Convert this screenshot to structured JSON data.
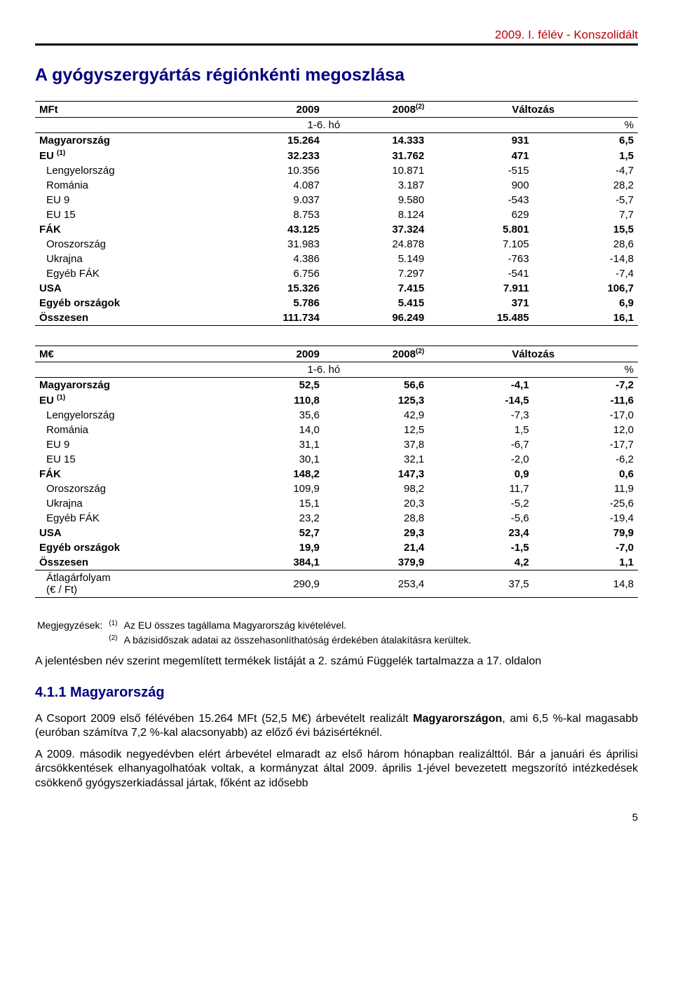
{
  "header_right": "2009. I. félév - Konszolidált",
  "title": "A gyógyszergyártás régiónkénti megoszlása",
  "t1": {
    "hdr": {
      "c0": "MFt",
      "c1": "2009",
      "c2_html": "2008<sup>(2)</sup>",
      "c3": "Változás"
    },
    "sub": {
      "span12": "1-6. hó",
      "c4": "%"
    },
    "rows": [
      {
        "label_html": "Magyarország",
        "bold": true,
        "indent": 0,
        "v": [
          "15.264",
          "14.333",
          "931",
          "6,5"
        ]
      },
      {
        "label_html": "EU <sup>(1)</sup>",
        "bold": true,
        "indent": 0,
        "v": [
          "32.233",
          "31.762",
          "471",
          "1,5"
        ]
      },
      {
        "label_html": "Lengyelország",
        "bold": false,
        "indent": 1,
        "v": [
          "10.356",
          "10.871",
          "-515",
          "-4,7"
        ]
      },
      {
        "label_html": "Románia",
        "bold": false,
        "indent": 1,
        "v": [
          "4.087",
          "3.187",
          "900",
          "28,2"
        ]
      },
      {
        "label_html": "EU 9",
        "bold": false,
        "indent": 1,
        "v": [
          "9.037",
          "9.580",
          "-543",
          "-5,7"
        ]
      },
      {
        "label_html": "EU 15",
        "bold": false,
        "indent": 1,
        "v": [
          "8.753",
          "8.124",
          "629",
          "7,7"
        ]
      },
      {
        "label_html": "FÁK",
        "bold": true,
        "indent": 0,
        "v": [
          "43.125",
          "37.324",
          "5.801",
          "15,5"
        ]
      },
      {
        "label_html": "Oroszország",
        "bold": false,
        "indent": 1,
        "v": [
          "31.983",
          "24.878",
          "7.105",
          "28,6"
        ]
      },
      {
        "label_html": "Ukrajna",
        "bold": false,
        "indent": 1,
        "v": [
          "4.386",
          "5.149",
          "-763",
          "-14,8"
        ]
      },
      {
        "label_html": "Egyéb FÁK",
        "bold": false,
        "indent": 1,
        "v": [
          "6.756",
          "7.297",
          "-541",
          "-7,4"
        ]
      },
      {
        "label_html": "USA",
        "bold": true,
        "indent": 0,
        "v": [
          "15.326",
          "7.415",
          "7.911",
          "106,7"
        ]
      },
      {
        "label_html": "Egyéb országok",
        "bold": true,
        "indent": 0,
        "v": [
          "5.786",
          "5.415",
          "371",
          "6,9"
        ]
      },
      {
        "label_html": "Összesen",
        "bold": true,
        "indent": 0,
        "v": [
          "111.734",
          "96.249",
          "15.485",
          "16,1"
        ]
      }
    ]
  },
  "t2": {
    "hdr": {
      "c0": "M€",
      "c1": "2009",
      "c2_html": "2008<sup>(2)</sup>",
      "c3": "Változás"
    },
    "sub": {
      "span12": "1-6. hó",
      "c4": "%"
    },
    "rows": [
      {
        "label_html": "Magyarország",
        "bold": true,
        "indent": 0,
        "v": [
          "52,5",
          "56,6",
          "-4,1",
          "-7,2"
        ]
      },
      {
        "label_html": "EU <sup>(1)</sup>",
        "bold": true,
        "indent": 0,
        "v": [
          "110,8",
          "125,3",
          "-14,5",
          "-11,6"
        ]
      },
      {
        "label_html": "Lengyelország",
        "bold": false,
        "indent": 1,
        "v": [
          "35,6",
          "42,9",
          "-7,3",
          "-17,0"
        ]
      },
      {
        "label_html": "Románia",
        "bold": false,
        "indent": 1,
        "v": [
          "14,0",
          "12,5",
          "1,5",
          "12,0"
        ]
      },
      {
        "label_html": "EU 9",
        "bold": false,
        "indent": 1,
        "v": [
          "31,1",
          "37,8",
          "-6,7",
          "-17,7"
        ]
      },
      {
        "label_html": "EU 15",
        "bold": false,
        "indent": 1,
        "v": [
          "30,1",
          "32,1",
          "-2,0",
          "-6,2"
        ]
      },
      {
        "label_html": "FÁK",
        "bold": true,
        "indent": 0,
        "v": [
          "148,2",
          "147,3",
          "0,9",
          "0,6"
        ]
      },
      {
        "label_html": "Oroszország",
        "bold": false,
        "indent": 1,
        "v": [
          "109,9",
          "98,2",
          "11,7",
          "11,9"
        ]
      },
      {
        "label_html": "Ukrajna",
        "bold": false,
        "indent": 1,
        "v": [
          "15,1",
          "20,3",
          "-5,2",
          "-25,6"
        ]
      },
      {
        "label_html": "Egyéb FÁK",
        "bold": false,
        "indent": 1,
        "v": [
          "23,2",
          "28,8",
          "-5,6",
          "-19,4"
        ]
      },
      {
        "label_html": "USA",
        "bold": true,
        "indent": 0,
        "v": [
          "52,7",
          "29,3",
          "23,4",
          "79,9"
        ]
      },
      {
        "label_html": "Egyéb országok",
        "bold": true,
        "indent": 0,
        "v": [
          "19,9",
          "21,4",
          "-1,5",
          "-7,0"
        ]
      },
      {
        "label_html": "Összesen",
        "bold": true,
        "indent": 0,
        "v": [
          "384,1",
          "379,9",
          "4,2",
          "1,1"
        ]
      },
      {
        "label_html": "Átlagárfolyam<br>(€ / Ft)",
        "bold": false,
        "indent": 1,
        "v": [
          "290,9",
          "253,4",
          "37,5",
          "14,8"
        ],
        "topsep": true
      }
    ]
  },
  "notes_label": "Megjegyzések:",
  "note1_sup": "(1)",
  "note1": "Az EU összes tagállama Magyarország kivételével.",
  "note2_sup": "(2)",
  "note2": "A bázisidőszak adatai az összehasonlíthatóság érdekében átalakításra kerültek.",
  "para1": "A jelentésben név szerint megemlített termékek listáját a 2. számú Függelék tartalmazza a 17. oldalon",
  "section": "4.1.1 Magyarország",
  "para2_html": "A Csoport 2009 első félévében 15.264 MFt (52,5 M€) árbevételt realizált <b>Magyarországon</b>, ami 6,5 %-kal magasabb (euróban számítva 7,2 %-kal alacsonyabb) az előző évi bázisértéknél.",
  "para3": "A 2009. második negyedévben elért árbevétel elmaradt az első három hónapban realizálttól. Bár a januári és áprilisi árcsökkentések elhanyagolhatóak voltak, a kormányzat által 2009. április 1-jével bevezetett megszorító intézkedések csökkenő gyógyszerkiadással jártak, főként az idősebb",
  "page_num": "5"
}
